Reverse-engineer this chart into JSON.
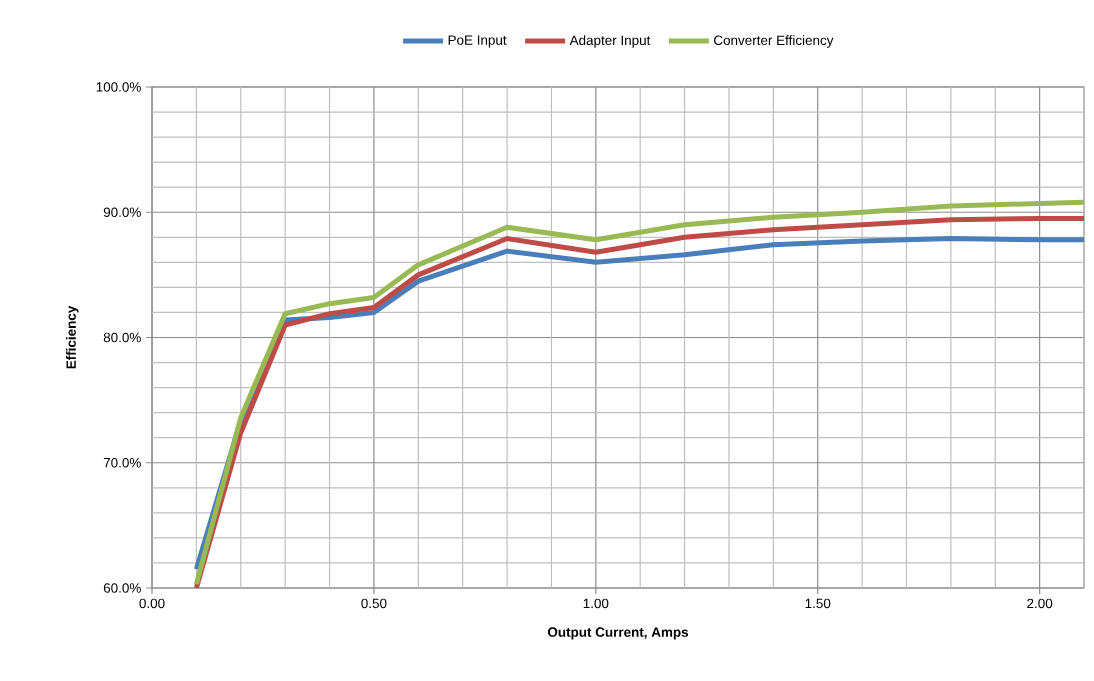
{
  "chart_data": {
    "type": "line",
    "xlabel": "Output Current, Amps",
    "ylabel": "Efficiency",
    "x": [
      0.1,
      0.2,
      0.3,
      0.4,
      0.5,
      0.6,
      0.8,
      1.0,
      1.2,
      1.4,
      1.6,
      1.8,
      2.0,
      2.1
    ],
    "series": [
      {
        "name": "PoE Input",
        "color": "#4a7ebb",
        "values": [
          61.5,
          73.4,
          81.4,
          81.6,
          82.0,
          84.5,
          86.9,
          86.0,
          86.6,
          87.4,
          87.7,
          87.9,
          87.8,
          87.8
        ]
      },
      {
        "name": "Adapter Input",
        "color": "#be4b48",
        "values": [
          60.0,
          72.4,
          81.0,
          81.9,
          82.4,
          85.0,
          87.9,
          86.8,
          88.0,
          88.6,
          89.0,
          89.4,
          89.5,
          89.5
        ]
      },
      {
        "name": "Converter Efficiency",
        "color": "#98b954",
        "values": [
          60.3,
          73.6,
          81.9,
          82.7,
          83.2,
          85.8,
          88.8,
          87.8,
          89.0,
          89.6,
          90.0,
          90.5,
          90.7,
          90.8
        ]
      }
    ],
    "xlim": [
      0,
      2.1
    ],
    "ylim": [
      60,
      100
    ],
    "xticks": [
      {
        "value": 0,
        "label": "0.00"
      },
      {
        "value": 0.1,
        "label": null
      },
      {
        "value": 0.2,
        "label": null
      },
      {
        "value": 0.3,
        "label": null
      },
      {
        "value": 0.4,
        "label": null
      },
      {
        "value": 0.5,
        "label": "0.50"
      },
      {
        "value": 0.6,
        "label": null
      },
      {
        "value": 0.7,
        "label": null
      },
      {
        "value": 0.8,
        "label": null
      },
      {
        "value": 0.9,
        "label": null
      },
      {
        "value": 1.0,
        "label": "1.00"
      },
      {
        "value": 1.1,
        "label": null
      },
      {
        "value": 1.2,
        "label": null
      },
      {
        "value": 1.3,
        "label": null
      },
      {
        "value": 1.4,
        "label": null
      },
      {
        "value": 1.5,
        "label": "1.50"
      },
      {
        "value": 1.6,
        "label": null
      },
      {
        "value": 1.7,
        "label": null
      },
      {
        "value": 1.8,
        "label": null
      },
      {
        "value": 1.9,
        "label": null
      },
      {
        "value": 2.0,
        "label": "2.00"
      },
      {
        "value": 2.1,
        "label": null
      }
    ],
    "yticks": [
      {
        "value": 60,
        "label": "60.0%"
      },
      {
        "value": 62,
        "label": null
      },
      {
        "value": 64,
        "label": null
      },
      {
        "value": 66,
        "label": null
      },
      {
        "value": 68,
        "label": null
      },
      {
        "value": 70,
        "label": "70.0%"
      },
      {
        "value": 72,
        "label": null
      },
      {
        "value": 74,
        "label": null
      },
      {
        "value": 76,
        "label": null
      },
      {
        "value": 78,
        "label": null
      },
      {
        "value": 80,
        "label": "80.0%"
      },
      {
        "value": 82,
        "label": null
      },
      {
        "value": 84,
        "label": null
      },
      {
        "value": 86,
        "label": null
      },
      {
        "value": 88,
        "label": null
      },
      {
        "value": 90,
        "label": "90.0%"
      },
      {
        "value": 92,
        "label": null
      },
      {
        "value": 94,
        "label": null
      },
      {
        "value": 96,
        "label": null
      },
      {
        "value": 98,
        "label": null
      },
      {
        "value": 100,
        "label": "100.0%"
      }
    ],
    "grid": true,
    "legend": "top",
    "marker": "none",
    "line_style": "solid"
  }
}
